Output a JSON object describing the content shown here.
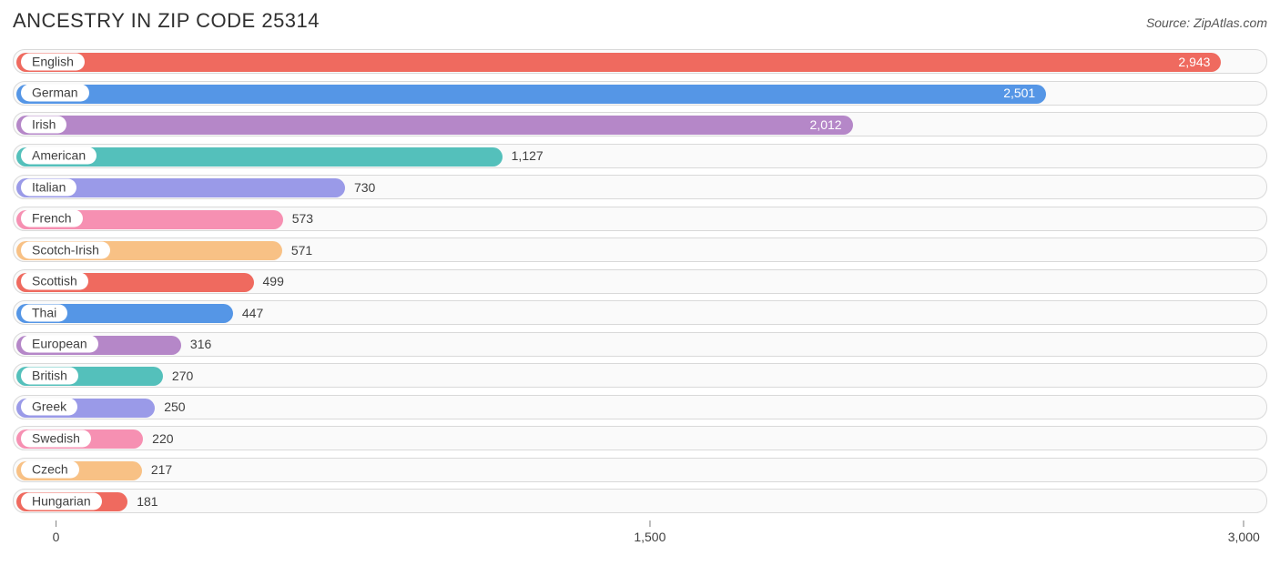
{
  "title": "ANCESTRY IN ZIP CODE 25314",
  "source": "Source: ZipAtlas.com",
  "chart": {
    "type": "bar",
    "x_min": -100,
    "x_max": 3050,
    "axis_ticks": [
      {
        "value": 0,
        "label": "0"
      },
      {
        "value": 1500,
        "label": "1,500"
      },
      {
        "value": 3000,
        "label": "3,000"
      }
    ],
    "row_bg": "#fafafa",
    "row_border": "#d9d9d9",
    "label_fontsize": 14,
    "label_color": "#404040",
    "pill_bg": "#ffffff",
    "bars": [
      {
        "name": "English",
        "value": 2943,
        "display": "2,943",
        "color": "#ef6a5f",
        "label_inside": true
      },
      {
        "name": "German",
        "value": 2501,
        "display": "2,501",
        "color": "#5596e6",
        "label_inside": true
      },
      {
        "name": "Irish",
        "value": 2012,
        "display": "2,012",
        "color": "#b587c8",
        "label_inside": true
      },
      {
        "name": "American",
        "value": 1127,
        "display": "1,127",
        "color": "#54c0bb",
        "label_inside": false
      },
      {
        "name": "Italian",
        "value": 730,
        "display": "730",
        "color": "#9a9ae8",
        "label_inside": false
      },
      {
        "name": "French",
        "value": 573,
        "display": "573",
        "color": "#f690b2",
        "label_inside": false
      },
      {
        "name": "Scotch-Irish",
        "value": 571,
        "display": "571",
        "color": "#f8c185",
        "label_inside": false
      },
      {
        "name": "Scottish",
        "value": 499,
        "display": "499",
        "color": "#ef6a5f",
        "label_inside": false
      },
      {
        "name": "Thai",
        "value": 447,
        "display": "447",
        "color": "#5596e6",
        "label_inside": false
      },
      {
        "name": "European",
        "value": 316,
        "display": "316",
        "color": "#b587c8",
        "label_inside": false
      },
      {
        "name": "British",
        "value": 270,
        "display": "270",
        "color": "#54c0bb",
        "label_inside": false
      },
      {
        "name": "Greek",
        "value": 250,
        "display": "250",
        "color": "#9a9ae8",
        "label_inside": false
      },
      {
        "name": "Swedish",
        "value": 220,
        "display": "220",
        "color": "#f690b2",
        "label_inside": false
      },
      {
        "name": "Czech",
        "value": 217,
        "display": "217",
        "color": "#f8c185",
        "label_inside": false
      },
      {
        "name": "Hungarian",
        "value": 181,
        "display": "181",
        "color": "#ef6a5f",
        "label_inside": false
      }
    ]
  }
}
